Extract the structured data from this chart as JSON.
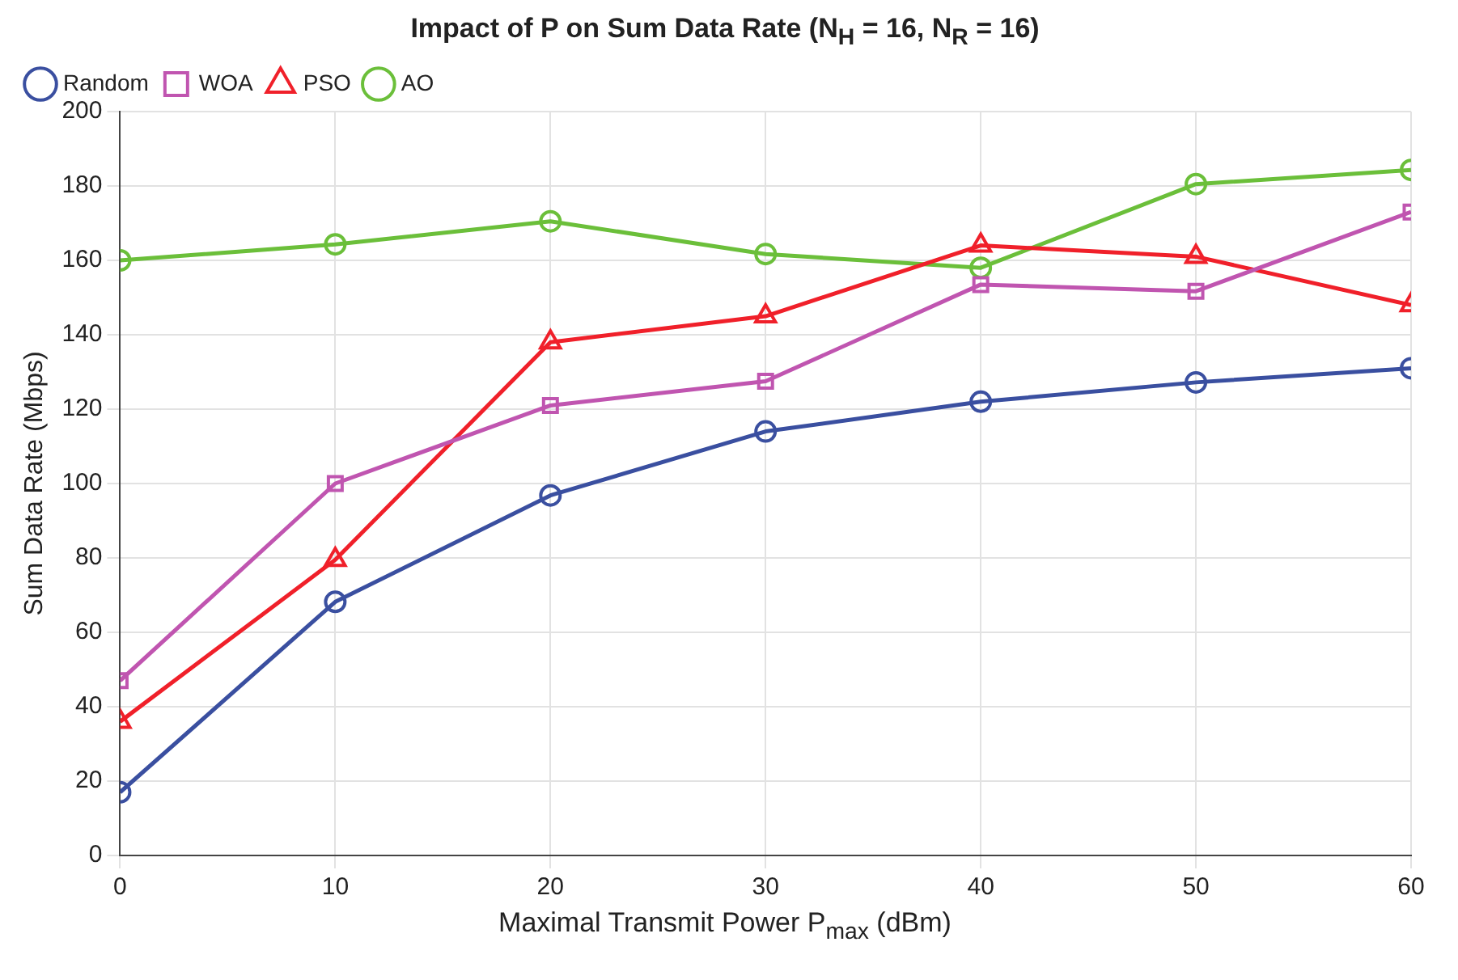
{
  "chart_data": {
    "type": "line",
    "title": "Impact of P on Sum Data Rate (N$_{H}$ = 16, N$_{R}$ = 16)",
    "xlabel": "Maximal Transmit Power P$_{max}$ (dBm)",
    "ylabel": "Sum Data Rate (Mbps)",
    "x": [
      0,
      10,
      20,
      30,
      40,
      50,
      60
    ],
    "series": [
      {
        "name": "Random",
        "color": "#3a4fa0",
        "marker": "circle",
        "values": [
          17,
          68.2,
          96.8,
          114,
          122,
          127.2,
          131
        ]
      },
      {
        "name": "WOA",
        "color": "#c055b0",
        "marker": "square",
        "values": [
          47,
          100,
          121,
          127.5,
          153.5,
          151.7,
          173
        ]
      },
      {
        "name": "PSO",
        "color": "#f0202a",
        "marker": "triangle",
        "values": [
          36,
          79.5,
          138,
          145,
          164,
          161,
          148
        ]
      },
      {
        "name": "AO",
        "color": "#6bbf3a",
        "marker": "circle",
        "values": [
          160,
          164.3,
          170.5,
          161.7,
          158,
          180.5,
          184.3
        ]
      }
    ],
    "xlim": [
      0,
      60
    ],
    "xticks": [
      0,
      10,
      20,
      30,
      40,
      50,
      60
    ],
    "ylim": [
      0,
      200
    ],
    "yticks": [
      0,
      20,
      40,
      60,
      80,
      100,
      120,
      140,
      160,
      180,
      200
    ],
    "grid": true,
    "legend": "top left",
    "line_style": "solid"
  }
}
